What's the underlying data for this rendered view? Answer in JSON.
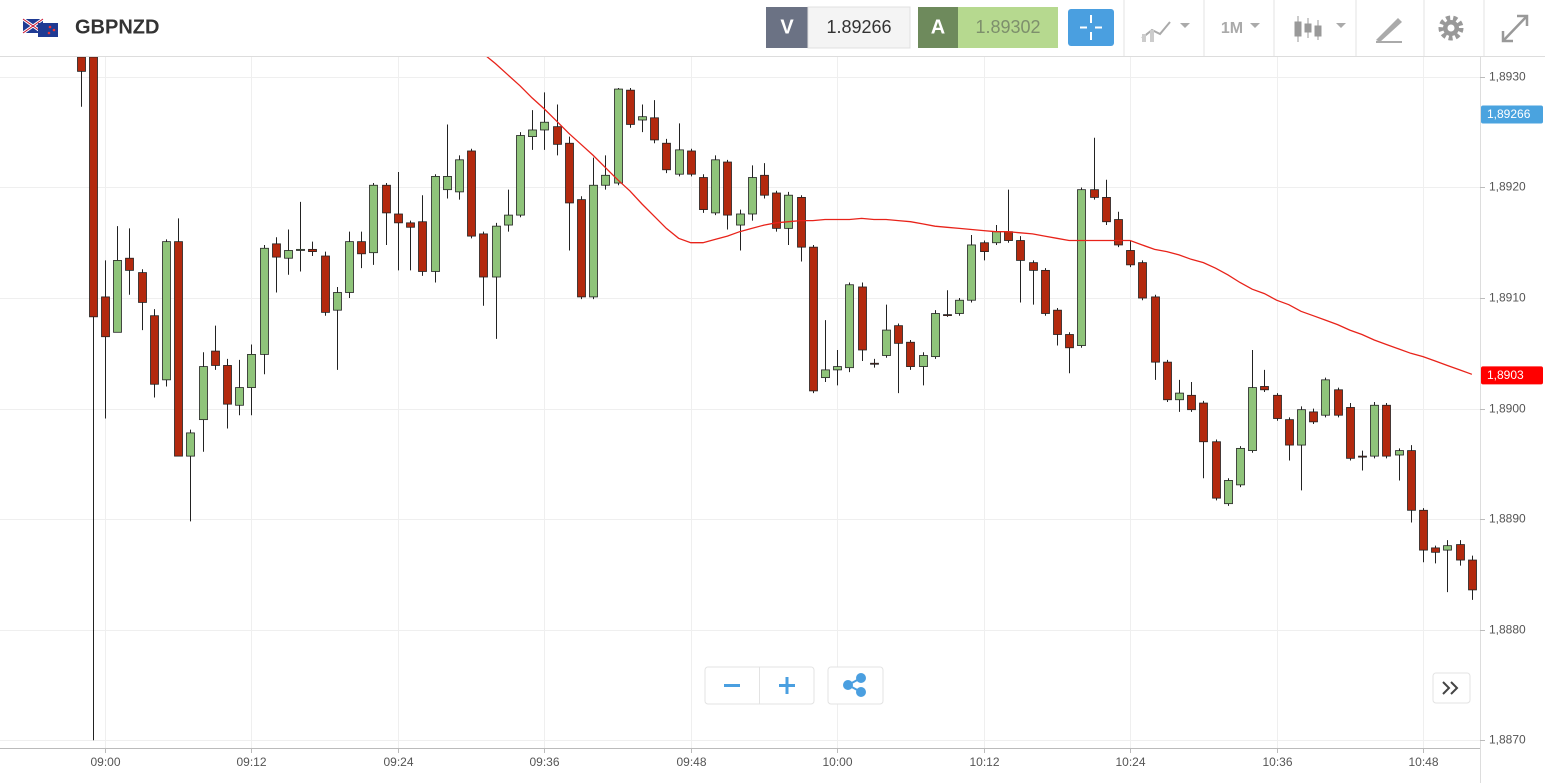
{
  "header": {
    "symbol": "GBPNZD",
    "bid_label": "V",
    "bid": "1.89266",
    "ask_label": "A",
    "ask": "1.89302",
    "timeframe": "1M"
  },
  "chart_data": {
    "type": "candlestick",
    "up_color": "#8fc47a",
    "down_color": "#b3290e",
    "grid": true,
    "ylim": [
      1.88693,
      1.89318
    ],
    "yticks": [
      {
        "value": 1.887,
        "label": "1,8870"
      },
      {
        "value": 1.888,
        "label": "1,8880"
      },
      {
        "value": 1.889,
        "label": "1,8890"
      },
      {
        "value": 1.89,
        "label": "1,8900"
      },
      {
        "value": 1.891,
        "label": "1,8910"
      },
      {
        "value": 1.892,
        "label": "1,8920"
      },
      {
        "value": 1.893,
        "label": "1,8930"
      }
    ],
    "categories": [
      null,
      null,
      "09:00",
      null,
      null,
      null,
      null,
      null,
      null,
      null,
      null,
      null,
      null,
      null,
      "09:12",
      null,
      null,
      null,
      null,
      null,
      null,
      null,
      null,
      null,
      null,
      null,
      "09:24",
      null,
      null,
      null,
      null,
      null,
      null,
      null,
      null,
      null,
      null,
      null,
      "09:36",
      null,
      null,
      null,
      null,
      null,
      null,
      null,
      null,
      null,
      null,
      null,
      "09:48",
      null,
      null,
      null,
      null,
      null,
      null,
      null,
      null,
      null,
      null,
      null,
      "10:00",
      null,
      null,
      null,
      null,
      null,
      null,
      null,
      null,
      null,
      null,
      null,
      "10:12",
      null,
      null,
      null,
      null,
      null,
      null,
      null,
      null,
      null,
      null,
      null,
      "10:24",
      null,
      null,
      null,
      null,
      null,
      null,
      null,
      null,
      null,
      null,
      null,
      "10:36",
      null,
      null,
      null,
      null,
      null,
      null,
      null,
      null,
      null,
      null,
      null,
      "10:48",
      null,
      null,
      null,
      null
    ],
    "open": [
      1.89318,
      1.89318,
      1.89101,
      1.89069,
      1.89136,
      1.89123,
      1.89084,
      1.89026,
      1.89151,
      1.88957,
      1.8899,
      1.89052,
      1.89039,
      1.89003,
      1.89019,
      1.89049,
      1.89149,
      1.89136,
      1.89143,
      1.89144,
      1.89138,
      1.89089,
      1.89105,
      1.89151,
      1.89141,
      1.89202,
      1.89176,
      1.89168,
      1.89169,
      1.89124,
      1.89198,
      1.89196,
      1.89233,
      1.89158,
      1.89119,
      1.89166,
      1.89175,
      1.89246,
      1.89252,
      1.89255,
      1.8924,
      1.89189,
      1.89101,
      1.89202,
      1.89204,
      1.89288,
      1.89261,
      1.89263,
      1.8924,
      1.89212,
      1.89233,
      1.89209,
      1.89177,
      1.89223,
      1.89166,
      1.89176,
      1.89211,
      1.89195,
      1.89163,
      1.89191,
      1.89146,
      1.89028,
      1.89035,
      1.89037,
      1.8911,
      1.89041,
      1.89048,
      1.89075,
      1.8906,
      1.89038,
      1.89047,
      1.89085,
      1.89086,
      1.89098,
      1.8915,
      1.8915,
      1.8916,
      1.89152,
      1.89132,
      1.89125,
      1.89089,
      1.89067,
      1.89057,
      1.89198,
      1.89191,
      1.89171,
      1.89143,
      1.89132,
      1.89101,
      1.89042,
      1.89008,
      1.89012,
      1.89005,
      1.8897,
      1.88914,
      1.88931,
      1.88962,
      1.8902,
      1.89012,
      1.8899,
      1.88967,
      1.88997,
      1.88994,
      1.89017,
      1.89001,
      1.88957,
      1.88957,
      1.89003,
      1.88958,
      1.88962,
      1.88908,
      1.88874,
      1.88872,
      1.88877,
      1.88863
    ],
    "high": [
      1.8932,
      1.8932,
      1.89134,
      1.89165,
      1.89163,
      1.89126,
      1.8909,
      1.89153,
      1.89172,
      1.88981,
      1.89051,
      1.89075,
      1.89045,
      1.89044,
      1.89058,
      1.89148,
      1.89155,
      1.89162,
      1.89187,
      1.89151,
      1.89142,
      1.8911,
      1.8916,
      1.8916,
      1.89204,
      1.89204,
      1.89214,
      1.8917,
      1.89193,
      1.89212,
      1.89257,
      1.89229,
      1.89235,
      1.8916,
      1.89168,
      1.89198,
      1.8925,
      1.8927,
      1.89286,
      1.89275,
      1.89246,
      1.89192,
      1.89227,
      1.89229,
      1.8929,
      1.8929,
      1.89275,
      1.89279,
      1.89244,
      1.89258,
      1.89235,
      1.89212,
      1.89229,
      1.89225,
      1.8918,
      1.8922,
      1.89222,
      1.89197,
      1.89196,
      1.89193,
      1.89148,
      1.8908,
      1.89053,
      1.89114,
      1.89114,
      1.89045,
      1.89094,
      1.89077,
      1.89062,
      1.89051,
      1.89089,
      1.89107,
      1.891,
      1.89157,
      1.89152,
      1.89166,
      1.89198,
      1.89156,
      1.89134,
      1.89127,
      1.89091,
      1.89069,
      1.892,
      1.89245,
      1.89207,
      1.89178,
      1.89152,
      1.89134,
      1.89103,
      1.89044,
      1.89026,
      1.89024,
      1.89007,
      1.88972,
      1.88937,
      1.88966,
      1.89053,
      1.89035,
      1.89014,
      1.88992,
      1.89002,
      1.89,
      1.89028,
      1.89019,
      1.89005,
      1.88962,
      1.89006,
      1.89005,
      1.88964,
      1.88967,
      1.8891,
      1.88876,
      1.88881,
      1.88881,
      1.88867
    ],
    "low": [
      1.89273,
      1.887,
      1.88991,
      1.89069,
      1.89103,
      1.89071,
      1.8901,
      1.8902,
      1.88957,
      1.88898,
      1.88961,
      1.89035,
      1.88982,
      1.88994,
      1.88994,
      1.89031,
      1.89105,
      1.89121,
      1.89124,
      1.89138,
      1.89084,
      1.89035,
      1.891,
      1.89127,
      1.8913,
      1.89148,
      1.89125,
      1.89125,
      1.8912,
      1.89114,
      1.8919,
      1.89189,
      1.89154,
      1.89093,
      1.89063,
      1.8916,
      1.89173,
      1.89234,
      1.89234,
      1.89229,
      1.89143,
      1.89099,
      1.89099,
      1.89198,
      1.89202,
      1.89254,
      1.8925,
      1.8924,
      1.89213,
      1.8921,
      1.8921,
      1.89177,
      1.89175,
      1.89162,
      1.89143,
      1.8917,
      1.8919,
      1.8916,
      1.89148,
      1.89133,
      1.89014,
      1.89024,
      1.89021,
      1.89033,
      1.89043,
      1.89037,
      1.89046,
      1.89014,
      1.89035,
      1.89021,
      1.89045,
      1.89083,
      1.89084,
      1.89096,
      1.89134,
      1.89148,
      1.8915,
      1.89096,
      1.89094,
      1.89084,
      1.89057,
      1.89032,
      1.89055,
      1.89189,
      1.89166,
      1.89146,
      1.89128,
      1.89098,
      1.89026,
      1.89006,
      1.88997,
      1.88997,
      1.88937,
      1.88917,
      1.88912,
      1.88929,
      1.8896,
      1.89015,
      1.88989,
      1.88953,
      1.88926,
      1.88986,
      1.88992,
      1.88992,
      1.88953,
      1.88944,
      1.88955,
      1.88955,
      1.88935,
      1.88897,
      1.88861,
      1.8886,
      1.88834,
      1.88858,
      1.88827
    ],
    "close": [
      1.89305,
      1.89083,
      1.89065,
      1.89134,
      1.89125,
      1.89096,
      1.89022,
      1.89151,
      1.88957,
      1.88978,
      1.89038,
      1.89039,
      1.89004,
      1.89019,
      1.89049,
      1.89145,
      1.89137,
      1.89143,
      1.89144,
      1.89142,
      1.89087,
      1.89105,
      1.89151,
      1.8914,
      1.89202,
      1.89177,
      1.89168,
      1.89164,
      1.89124,
      1.8921,
      1.8921,
      1.89225,
      1.89156,
      1.89119,
      1.89165,
      1.89175,
      1.89247,
      1.89252,
      1.89259,
      1.89239,
      1.89186,
      1.89101,
      1.89202,
      1.89211,
      1.89289,
      1.89257,
      1.89264,
      1.89243,
      1.89216,
      1.89234,
      1.89212,
      1.8918,
      1.89225,
      1.89175,
      1.89176,
      1.89209,
      1.89193,
      1.89163,
      1.89193,
      1.89146,
      1.89016,
      1.89035,
      1.89038,
      1.89112,
      1.89053,
      1.89041,
      1.89071,
      1.89059,
      1.89038,
      1.89048,
      1.89086,
      1.89085,
      1.89098,
      1.89148,
      1.89142,
      1.8916,
      1.89152,
      1.89134,
      1.89125,
      1.89086,
      1.89067,
      1.89055,
      1.89198,
      1.89191,
      1.89169,
      1.89148,
      1.8913,
      1.891,
      1.89042,
      1.89008,
      1.89014,
      1.88999,
      1.8897,
      1.88919,
      1.88935,
      1.88964,
      1.89019,
      1.89017,
      1.88991,
      1.88967,
      1.88999,
      1.88988,
      1.89026,
      1.88994,
      1.88955,
      1.88957,
      1.89003,
      1.88957,
      1.88962,
      1.88908,
      1.88872,
      1.8887,
      1.88876,
      1.88863,
      1.88836
    ],
    "overlay": {
      "type": "line",
      "color": "#e8231a",
      "values": [
        null,
        null,
        null,
        null,
        null,
        null,
        null,
        null,
        null,
        null,
        null,
        null,
        null,
        null,
        null,
        null,
        null,
        null,
        null,
        null,
        null,
        null,
        null,
        null,
        null,
        null,
        null,
        null,
        null,
        null,
        null,
        null,
        null,
        1.89321,
        1.89312,
        1.89302,
        1.89292,
        1.89281,
        1.89271,
        1.8926,
        1.89249,
        1.89239,
        1.89229,
        1.89218,
        1.89207,
        1.89197,
        1.89185,
        1.89174,
        1.89163,
        1.89154,
        1.8915,
        1.8915,
        1.89153,
        1.89156,
        1.8916,
        1.89163,
        1.89166,
        1.89168,
        1.89169,
        1.8917,
        1.8917,
        1.89171,
        1.89171,
        1.89171,
        1.89172,
        1.89171,
        1.89171,
        1.8917,
        1.89169,
        1.89167,
        1.89165,
        1.89164,
        1.89163,
        1.89162,
        1.89161,
        1.8916,
        1.8916,
        1.89159,
        1.89158,
        1.89156,
        1.89154,
        1.89152,
        1.89152,
        1.89152,
        1.89152,
        1.89152,
        1.89152,
        1.89148,
        1.89144,
        1.89142,
        1.89139,
        1.89135,
        1.89132,
        1.89127,
        1.89121,
        1.89114,
        1.89108,
        1.89104,
        1.89098,
        1.89094,
        1.89088,
        1.89084,
        1.8908,
        1.89076,
        1.89071,
        1.89067,
        1.89062,
        1.89058,
        1.89054,
        1.8905,
        1.89047,
        1.89043,
        1.89039,
        1.89035,
        1.89031
      ]
    },
    "price_labels": [
      {
        "value": 1.89266,
        "label": "1,89266",
        "color": "#4aa3df"
      },
      {
        "value": 1.8903,
        "label": "1,8903",
        "color": "#ff0000"
      }
    ]
  }
}
